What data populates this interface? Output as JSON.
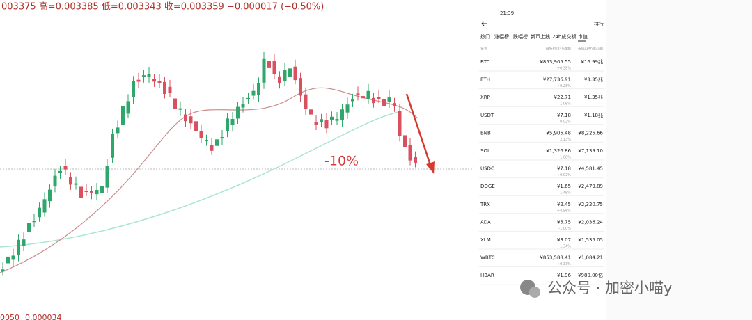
{
  "chart_panel": {
    "ohlc_text": "003375 高=0.003385 低=0.003343 收=0.003359 −0.000017 (−0.50%)",
    "annotation": "-10%",
    "footer_left": "0050",
    "footer_value": "0.000034"
  },
  "phone": {
    "time": "21:39",
    "title": "排行",
    "tabs": [
      "热门",
      "涨幅榜",
      "跌幅榜",
      "新币上线",
      "24h成交额",
      "市值"
    ],
    "columns": [
      "名称",
      "最新价/24h涨跌",
      "市值/24h成交额"
    ],
    "rows": [
      {
        "name": "BTC",
        "price": "¥853,905.55",
        "change": "+0.38%",
        "market_cap": "¥16.99兆"
      },
      {
        "name": "ETH",
        "price": "¥27,736.91",
        "change": "+0.28%",
        "market_cap": "¥3.35兆"
      },
      {
        "name": "XRP",
        "price": "¥22.71",
        "change": "-1.06%",
        "market_cap": "¥1.35兆"
      },
      {
        "name": "USDT",
        "price": "¥7.18",
        "change": "-0.02%",
        "market_cap": "¥1.18兆"
      },
      {
        "name": "BNB",
        "price": "¥5,905.48",
        "change": "2.13%",
        "market_cap": "¥8,225.66"
      },
      {
        "name": "SOL",
        "price": "¥1,326.86",
        "change": "1.08%",
        "market_cap": "¥7,139.10"
      },
      {
        "name": "USDC",
        "price": "¥7.18",
        "change": "+0.02%",
        "market_cap": "¥4,581.45"
      },
      {
        "name": "DOGE",
        "price": "¥1.65",
        "change": "-1.46%",
        "market_cap": "¥2,479.89"
      },
      {
        "name": "TRX",
        "price": "¥2.45",
        "change": "+4.56%",
        "market_cap": "¥2,320.75"
      },
      {
        "name": "ADA",
        "price": "¥5.75",
        "change": "-1.00%",
        "market_cap": "¥2,036.24"
      },
      {
        "name": "XLM",
        "price": "¥3.07",
        "change": "1.34%",
        "market_cap": "¥1,535.05"
      },
      {
        "name": "WBTC",
        "price": "¥853,588.41",
        "change": "+0.33%",
        "market_cap": "¥1,084.21"
      },
      {
        "name": "HBAR",
        "price": "¥1.96",
        "change": "",
        "market_cap": "¥980.00亿"
      }
    ]
  },
  "watermark": "公众号 · 加密小喵y"
}
